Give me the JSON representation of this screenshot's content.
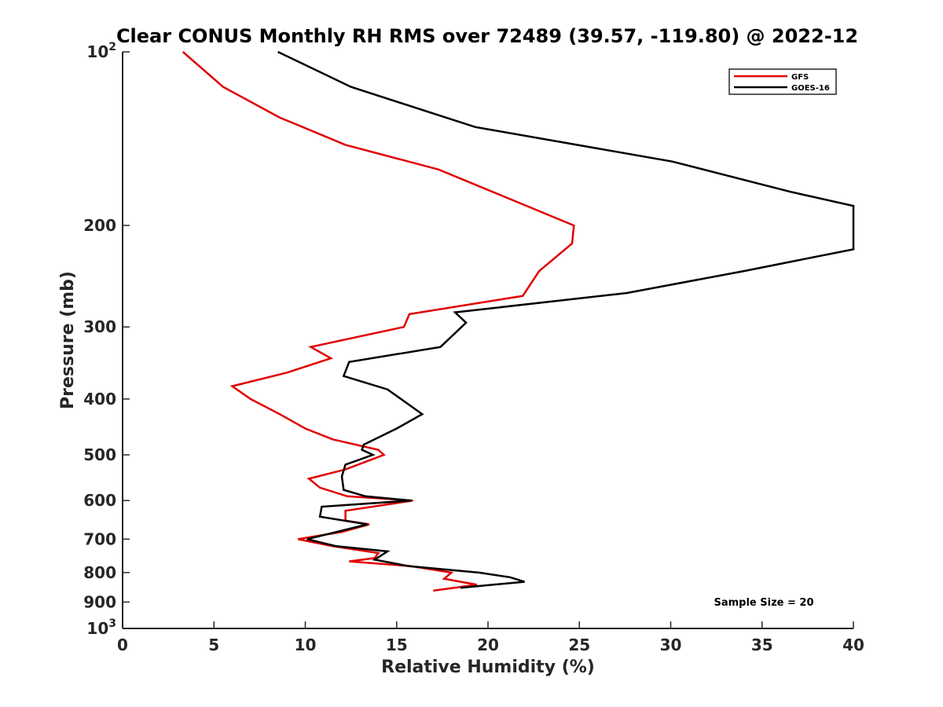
{
  "chart_data": {
    "type": "line",
    "title": "Clear CONUS Monthly RH RMS over 72489 (39.57, -119.80) @ 2022-12",
    "xlabel": "Relative Humidity (%)",
    "ylabel": "Pressure (mb)",
    "xlim": [
      0,
      40
    ],
    "ylim": [
      100,
      1000
    ],
    "y_scale": "log",
    "y_reversed": true,
    "grid": false,
    "legend_position": "top-right",
    "x_ticks": [
      0,
      5,
      10,
      15,
      20,
      25,
      30,
      35,
      40
    ],
    "x_tick_labels": [
      "0",
      "5",
      "10",
      "15",
      "20",
      "25",
      "30",
      "35",
      "40"
    ],
    "y_ticks": [
      100,
      200,
      300,
      400,
      500,
      600,
      700,
      800,
      900,
      1000
    ],
    "y_tick_labels": [
      {
        "base": "10",
        "exp": "2"
      },
      {
        "base": "200",
        "exp": ""
      },
      {
        "base": "300",
        "exp": ""
      },
      {
        "base": "400",
        "exp": ""
      },
      {
        "base": "500",
        "exp": ""
      },
      {
        "base": "600",
        "exp": ""
      },
      {
        "base": "700",
        "exp": ""
      },
      {
        "base": "800",
        "exp": ""
      },
      {
        "base": "900",
        "exp": ""
      },
      {
        "base": "10",
        "exp": "3"
      }
    ],
    "annotation": "Sample Size = 20",
    "series": [
      {
        "name": "GFS",
        "color": "#e00000",
        "points": [
          [
            3.3,
            100
          ],
          [
            5.5,
            115
          ],
          [
            8.6,
            130
          ],
          [
            12.2,
            145
          ],
          [
            17.3,
            160
          ],
          [
            24.7,
            200
          ],
          [
            24.6,
            215
          ],
          [
            22.8,
            240
          ],
          [
            21.9,
            265
          ],
          [
            15.7,
            285
          ],
          [
            15.4,
            300
          ],
          [
            10.3,
            325
          ],
          [
            11.4,
            340
          ],
          [
            9.0,
            360
          ],
          [
            6.0,
            380
          ],
          [
            7.0,
            400
          ],
          [
            8.6,
            425
          ],
          [
            10.0,
            450
          ],
          [
            11.5,
            470
          ],
          [
            14.0,
            490
          ],
          [
            14.3,
            500
          ],
          [
            12.2,
            530
          ],
          [
            10.2,
            550
          ],
          [
            10.8,
            570
          ],
          [
            12.3,
            590
          ],
          [
            15.9,
            600
          ],
          [
            12.2,
            625
          ],
          [
            12.2,
            650
          ],
          [
            13.5,
            660
          ],
          [
            12.0,
            680
          ],
          [
            9.6,
            700
          ],
          [
            11.5,
            720
          ],
          [
            14.0,
            740
          ],
          [
            13.8,
            755
          ],
          [
            12.4,
            765
          ],
          [
            15.8,
            780
          ],
          [
            18.0,
            800
          ],
          [
            17.6,
            820
          ],
          [
            19.4,
            840
          ],
          [
            17.0,
            860
          ]
        ]
      },
      {
        "name": "GOES-16",
        "color": "#000000",
        "points": [
          [
            8.5,
            100
          ],
          [
            12.5,
            115
          ],
          [
            19.3,
            135
          ],
          [
            30.1,
            155
          ],
          [
            36.6,
            175
          ],
          [
            40.0,
            185
          ],
          [
            40.0,
            220
          ],
          [
            34.0,
            240
          ],
          [
            27.6,
            262
          ],
          [
            18.2,
            283
          ],
          [
            18.8,
            295
          ],
          [
            17.4,
            325
          ],
          [
            12.4,
            345
          ],
          [
            12.1,
            365
          ],
          [
            14.5,
            385
          ],
          [
            16.4,
            425
          ],
          [
            15.0,
            450
          ],
          [
            13.2,
            480
          ],
          [
            13.1,
            490
          ],
          [
            13.7,
            500
          ],
          [
            12.2,
            520
          ],
          [
            12.0,
            545
          ],
          [
            12.1,
            575
          ],
          [
            13.3,
            590
          ],
          [
            15.8,
            600
          ],
          [
            10.9,
            615
          ],
          [
            10.8,
            640
          ],
          [
            13.4,
            660
          ],
          [
            10.1,
            700
          ],
          [
            11.7,
            720
          ],
          [
            14.5,
            735
          ],
          [
            13.8,
            760
          ],
          [
            15.7,
            780
          ],
          [
            19.5,
            800
          ],
          [
            21.2,
            815
          ],
          [
            22.0,
            830
          ],
          [
            18.5,
            850
          ]
        ]
      }
    ]
  }
}
